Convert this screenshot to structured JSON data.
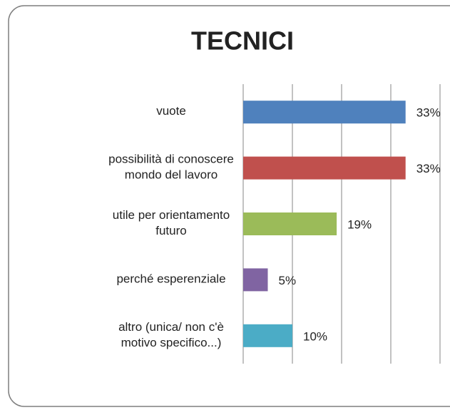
{
  "chart_data": {
    "type": "barh",
    "title": "TECNICI",
    "categories": [
      "vuote",
      "possibilità di conoscere\nmondo del lavoro",
      "utile per orientamento\nfuturo",
      "perché esperenziale",
      "altro (unica/ non c'è\nmotivo specifico...)"
    ],
    "values": [
      33,
      33,
      19,
      5,
      10
    ],
    "value_labels": [
      "33%",
      "33%",
      "19%",
      "5%",
      "10%"
    ],
    "colors": [
      "#4f81bd",
      "#c0504d",
      "#9bbb59",
      "#8064a2",
      "#4bacc6"
    ],
    "xlim": [
      0,
      40
    ],
    "xticks": [
      0,
      10,
      20,
      30,
      40
    ],
    "grid": true
  }
}
